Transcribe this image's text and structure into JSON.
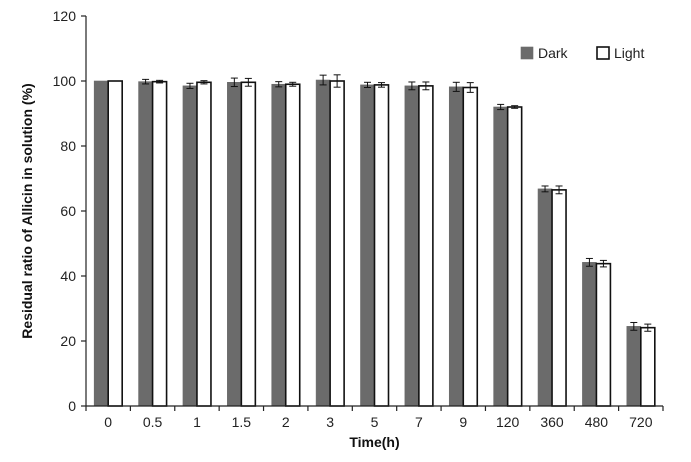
{
  "chart_data": {
    "type": "bar",
    "xlabel": "Time(h)",
    "ylabel": "Residual ratio of Allicin in solution (%)",
    "ylim": [
      0,
      120
    ],
    "yticks": [
      "0",
      "20",
      "40",
      "60",
      "80",
      "100",
      "120"
    ],
    "grid": false,
    "legend_position": "top-right",
    "categories": [
      "0",
      "0.5",
      "1",
      "1.5",
      "2",
      "3",
      "5",
      "7",
      "9",
      "120",
      "360",
      "480",
      "720"
    ],
    "series": [
      {
        "name": "Dark",
        "color": "#6b6b6b",
        "fill": "solid",
        "values": [
          100,
          99.8,
          98.5,
          99.6,
          99.0,
          100.3,
          98.8,
          98.5,
          98.2,
          92.0,
          66.8,
          44.2,
          24.5
        ],
        "errors": [
          0,
          0.7,
          0.8,
          1.3,
          0.8,
          1.5,
          0.8,
          1.2,
          1.4,
          0.8,
          0.9,
          1.2,
          1.2
        ]
      },
      {
        "name": "Light",
        "color": "#ffffff",
        "fill": "hollow",
        "values": [
          100,
          99.8,
          99.6,
          99.6,
          99.0,
          100.0,
          98.8,
          98.5,
          98.0,
          92.0,
          66.5,
          43.8,
          24.1
        ],
        "errors": [
          0,
          0.4,
          0.5,
          1.2,
          0.6,
          1.9,
          0.7,
          1.2,
          1.5,
          0.4,
          1.2,
          1.0,
          1.1
        ]
      }
    ]
  }
}
